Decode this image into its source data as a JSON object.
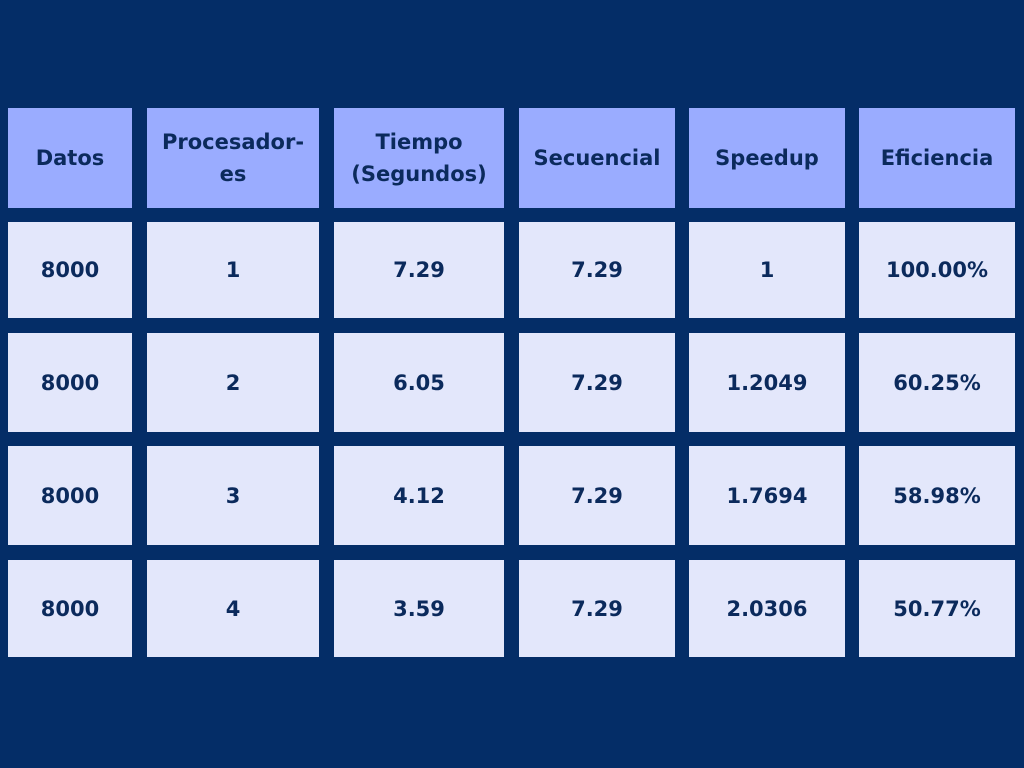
{
  "chart_data": {
    "type": "table",
    "columns": [
      "Datos",
      "Procesador­es",
      "Tiempo (Segundos)",
      "Secuencial",
      "Speedup",
      "Eficiencia"
    ],
    "rows": [
      [
        "8000",
        "1",
        "7.29",
        "7.29",
        "1",
        "100.00%"
      ],
      [
        "8000",
        "2",
        "6.05",
        "7.29",
        "1.2049",
        "60.25%"
      ],
      [
        "8000",
        "3",
        "4.12",
        "7.29",
        "1.7694",
        "58.98%"
      ],
      [
        "8000",
        "4",
        "3.59",
        "7.29",
        "2.0306",
        "50.77%"
      ]
    ]
  },
  "colors": {
    "background": "#042d67",
    "header_fill": "#9aacff",
    "body_fill": "#e3e7fb",
    "text": "#0b2a5c"
  }
}
